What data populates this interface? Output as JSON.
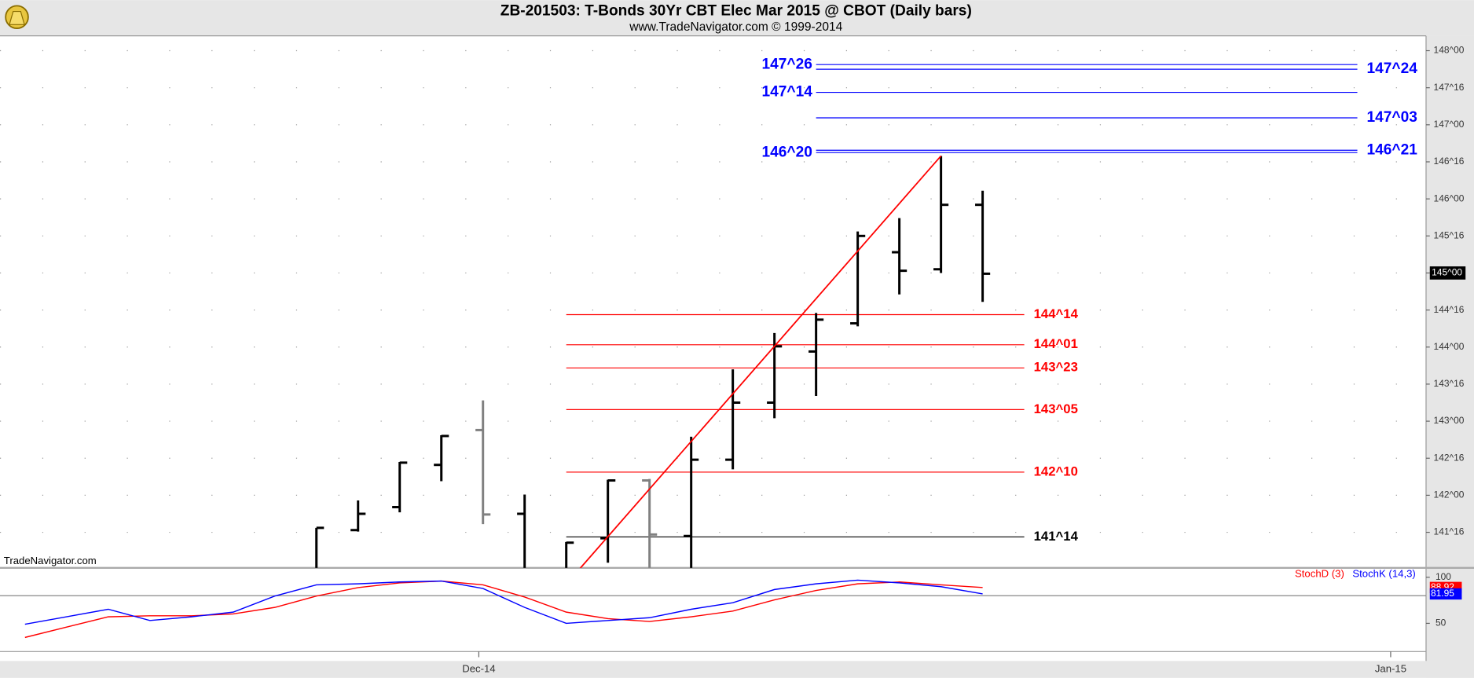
{
  "chart_data": [
    {
      "type": "ohlc",
      "title": "ZB-201503:  T-Bonds 30Yr CBT Elec Mar 2015 @ CBOT  (Daily bars)",
      "subtitle": "www.TradeNavigator.com © 1999-2014",
      "watermark": "TradeNavigator.com",
      "x": [
        0,
        1,
        2,
        3,
        4,
        5,
        6,
        7,
        8,
        9,
        10,
        11,
        12,
        13,
        14,
        15,
        16
      ],
      "series": [
        {
          "open": [
            141.0,
            141.53,
            141.84,
            142.41,
            142.88,
            141.75,
            141.0,
            141.42,
            142.2,
            141.45,
            142.48,
            143.25,
            143.94,
            144.32,
            145.28,
            145.05,
            145.92
          ],
          "high": [
            141.56,
            141.93,
            142.45,
            142.81,
            143.28,
            142.01,
            141.37,
            142.21,
            142.22,
            142.79,
            143.7,
            144.19,
            144.46,
            145.56,
            145.74,
            146.58,
            146.11
          ],
          "low": [
            140.9,
            141.51,
            141.77,
            142.19,
            141.61,
            140.9,
            140.9,
            141.09,
            140.9,
            140.9,
            142.35,
            143.04,
            143.34,
            144.28,
            144.71,
            145.0,
            144.61
          ],
          "close": [
            141.56,
            141.75,
            142.44,
            142.8,
            141.74,
            140.95,
            141.36,
            142.2,
            141.47,
            142.48,
            143.25,
            144.01,
            144.37,
            145.5,
            145.03,
            145.92,
            144.99
          ],
          "colors": [
            "#000000",
            "#000000",
            "#000000",
            "#000000",
            "#808080",
            "#000000",
            "#000000",
            "#000000",
            "#808080",
            "#000000",
            "#000000",
            "#000000",
            "#000000",
            "#000000",
            "#000000",
            "#000000",
            "#000000"
          ]
        }
      ],
      "trend": {
        "color": "#ff0000",
        "x": [
          6,
          15
        ],
        "values": [
          140.8,
          146.58
        ]
      },
      "levels": [
        {
          "value": 147.8125,
          "label": "147^26",
          "color": "#0000ff",
          "label_side": "left",
          "from": 12,
          "to": 25
        },
        {
          "value": 147.75,
          "label": "147^24",
          "color": "#0000ff",
          "label_side": "right",
          "from": 12,
          "to": 25
        },
        {
          "value": 147.4375,
          "label": "147^14",
          "color": "#0000ff",
          "label_side": "left",
          "from": 12,
          "to": 25
        },
        {
          "value": 147.09375,
          "label": "147^03",
          "color": "#0000ff",
          "label_side": "right",
          "from": 12,
          "to": 25
        },
        {
          "value": 146.625,
          "label": "146^20",
          "color": "#0000ff",
          "label_side": "left",
          "from": 12,
          "to": 25
        },
        {
          "value": 146.65625,
          "label": "146^21",
          "color": "#0000ff",
          "label_side": "right",
          "from": 12,
          "to": 25
        },
        {
          "value": 144.4375,
          "label": "144^14",
          "color": "#ff0000",
          "label_side": "right",
          "from": 6,
          "to": 17
        },
        {
          "value": 144.03125,
          "label": "144^01",
          "color": "#ff0000",
          "label_side": "right",
          "from": 6,
          "to": 17
        },
        {
          "value": 143.71875,
          "label": "143^23",
          "color": "#ff0000",
          "label_side": "right",
          "from": 6,
          "to": 17
        },
        {
          "value": 143.15625,
          "label": "143^05",
          "color": "#ff0000",
          "label_side": "right",
          "from": 6,
          "to": 17
        },
        {
          "value": 142.3125,
          "label": "142^10",
          "color": "#ff0000",
          "label_side": "right",
          "from": 6,
          "to": 17
        },
        {
          "value": 141.4375,
          "label": "141^14",
          "color": "#000000",
          "label_side": "right",
          "from": 6,
          "to": 17
        }
      ],
      "last_price": {
        "value": 145,
        "label": "145^00"
      },
      "xlim": [
        -7.6,
        26.65
      ],
      "ylim": [
        141.02,
        148.2
      ],
      "yticks": [
        {
          "value": 141.5,
          "label": "141^16"
        },
        {
          "value": 142,
          "label": "142^00"
        },
        {
          "value": 142.5,
          "label": "142^16"
        },
        {
          "value": 143,
          "label": "143^00"
        },
        {
          "value": 143.5,
          "label": "143^16"
        },
        {
          "value": 144,
          "label": "144^00"
        },
        {
          "value": 144.5,
          "label": "144^16"
        },
        {
          "value": 145,
          "label": "145^00"
        },
        {
          "value": 145.5,
          "label": "145^16"
        },
        {
          "value": 146,
          "label": "146^00"
        },
        {
          "value": 146.5,
          "label": "146^16"
        },
        {
          "value": 147,
          "label": "147^00"
        },
        {
          "value": 147.5,
          "label": "147^16"
        },
        {
          "value": 148,
          "label": "148^00"
        }
      ],
      "grid": true
    },
    {
      "type": "line",
      "x": [
        -7,
        -6,
        -5,
        -4,
        -3,
        -2,
        -1,
        0,
        1,
        2,
        3,
        4,
        5,
        6,
        7,
        8,
        9,
        10,
        11,
        12,
        13,
        14,
        15,
        16
      ],
      "series": [
        {
          "name": "StochD (3)",
          "color": "#ff0000",
          "values": [
            34.7,
            45.9,
            57.1,
            58.2,
            58.2,
            60.2,
            67.3,
            79.6,
            88.8,
            93.9,
            95.9,
            91.8,
            78.6,
            62.2,
            55.1,
            52.0,
            57.1,
            63.3,
            75.5,
            85.7,
            92.9,
            94.9,
            91.8,
            88.92
          ]
        },
        {
          "name": "StochK (14,3)",
          "color": "#0000ff",
          "values": [
            49.0,
            57.1,
            65.3,
            53.1,
            57.1,
            62.2,
            79.6,
            91.8,
            92.9,
            94.9,
            95.9,
            87.8,
            67.3,
            50.0,
            53.1,
            56.1,
            65.3,
            72.4,
            86.7,
            92.9,
            96.9,
            93.9,
            89.8,
            81.95
          ]
        }
      ],
      "hlines": [
        80
      ],
      "xlim": [
        -7.6,
        26.65
      ],
      "ylim": [
        19.4,
        110.2
      ],
      "yticks": [
        50,
        100
      ],
      "xticks": [
        {
          "value": 3.9,
          "label": "Dec-14"
        },
        {
          "value": 25.8,
          "label": "Jan-15"
        }
      ]
    }
  ]
}
